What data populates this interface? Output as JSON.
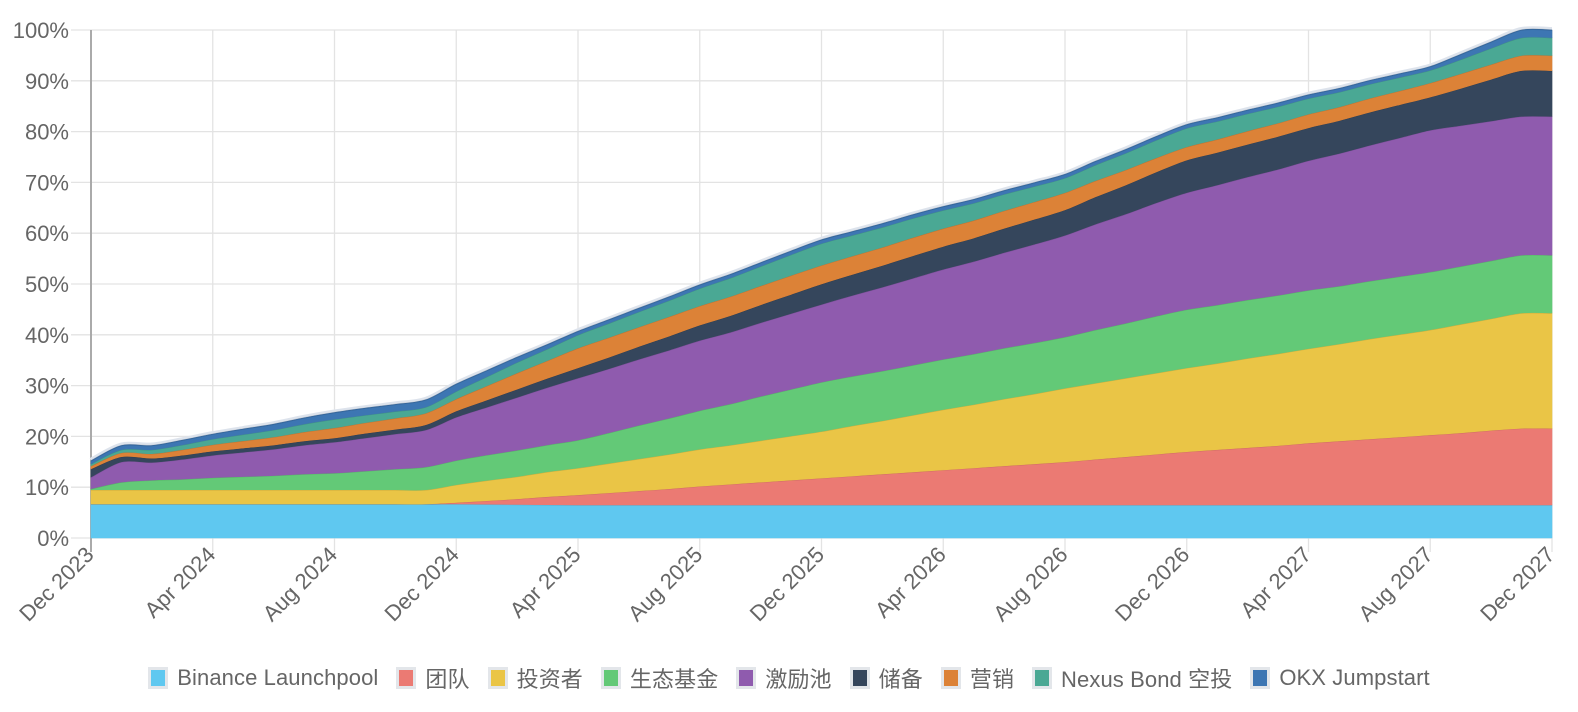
{
  "chart_data": {
    "type": "area",
    "stacked": true,
    "title": "",
    "xlabel": "",
    "ylabel": "",
    "ylim": [
      0,
      100
    ],
    "y_unit": "%",
    "y_ticks": [
      "0%",
      "10%",
      "20%",
      "30%",
      "40%",
      "50%",
      "60%",
      "70%",
      "80%",
      "90%",
      "100%"
    ],
    "x_tick_labels": [
      "Dec 2023",
      "Apr 2024",
      "Aug 2024",
      "Dec 2024",
      "Apr 2025",
      "Aug 2025",
      "Dec 2025",
      "Apr 2026",
      "Aug 2026",
      "Dec 2026",
      "Apr 2027",
      "Aug 2027",
      "Dec 2027"
    ],
    "x_start": "Dec 2023",
    "x_end": "Dec 2027",
    "x_interval": "month",
    "grid": true,
    "legend_position": "bottom",
    "series": [
      {
        "name": "Binance Launchpool",
        "color": "#5fc8f0",
        "values": [
          6.7,
          6.7,
          6.7,
          6.7,
          6.7,
          6.7,
          6.7,
          6.7,
          6.7,
          6.7,
          6.7,
          6.7,
          6.7,
          6.65,
          6.6,
          6.55,
          6.5,
          6.5,
          6.5,
          6.5,
          6.5,
          6.5,
          6.5,
          6.5,
          6.5,
          6.5,
          6.5,
          6.5,
          6.5,
          6.5,
          6.5,
          6.5,
          6.5,
          6.5,
          6.5,
          6.5,
          6.5,
          6.5,
          6.5,
          6.5,
          6.5,
          6.5,
          6.5,
          6.5,
          6.5,
          6.5,
          6.5,
          6.5,
          6.5
        ]
      },
      {
        "name": "团队",
        "color": "#eb7a73",
        "values": [
          0,
          0,
          0,
          0,
          0,
          0,
          0,
          0,
          0,
          0,
          0,
          0,
          0.3,
          0.7,
          1.1,
          1.6,
          2.0,
          2.4,
          2.8,
          3.2,
          3.7,
          4.1,
          4.5,
          4.9,
          5.3,
          5.7,
          6.1,
          6.5,
          6.9,
          7.3,
          7.7,
          8.1,
          8.5,
          9.0,
          9.5,
          10.0,
          10.5,
          10.9,
          11.3,
          11.7,
          12.2,
          12.6,
          13.0,
          13.4,
          13.8,
          14.2,
          14.7,
          15.1,
          15.1
        ]
      },
      {
        "name": "投资者",
        "color": "#eac546",
        "values": [
          2.8,
          2.8,
          2.8,
          2.8,
          2.8,
          2.8,
          2.8,
          2.8,
          2.8,
          2.8,
          2.8,
          2.8,
          3.5,
          4.0,
          4.4,
          4.9,
          5.3,
          5.8,
          6.3,
          6.8,
          7.3,
          7.7,
          8.2,
          8.7,
          9.2,
          9.9,
          10.5,
          11.2,
          11.9,
          12.5,
          13.2,
          13.8,
          14.5,
          15.0,
          15.5,
          16.0,
          16.5,
          17.0,
          17.6,
          18.1,
          18.6,
          19.1,
          19.7,
          20.2,
          20.7,
          21.4,
          22.0,
          22.7,
          22.7
        ]
      },
      {
        "name": "生态基金",
        "color": "#63c977",
        "values": [
          0.2,
          1.5,
          1.9,
          2.1,
          2.4,
          2.6,
          2.8,
          3.1,
          3.3,
          3.7,
          4.1,
          4.5,
          4.8,
          5.0,
          5.2,
          5.3,
          5.5,
          6.0,
          6.6,
          7.1,
          7.6,
          8.1,
          8.7,
          9.2,
          9.7,
          9.75,
          9.8,
          9.85,
          9.9,
          9.95,
          10.0,
          10.05,
          10.1,
          10.5,
          10.8,
          11.2,
          11.5,
          11.5,
          11.5,
          11.5,
          11.5,
          11.4,
          11.4,
          11.4,
          11.4,
          11.4,
          11.4,
          11.4,
          11.4
        ]
      },
      {
        "name": "激励池",
        "color": "#8f5bae",
        "values": [
          2.3,
          4.0,
          3.5,
          3.9,
          4.4,
          4.8,
          5.2,
          5.7,
          6.1,
          6.5,
          6.9,
          7.3,
          8.5,
          9.4,
          10.4,
          11.3,
          12.2,
          12.6,
          13.0,
          13.4,
          13.8,
          14.1,
          14.5,
          14.9,
          15.3,
          15.9,
          16.5,
          17.1,
          17.7,
          18.2,
          18.8,
          19.4,
          20.0,
          20.8,
          21.5,
          22.3,
          23.0,
          23.6,
          24.2,
          24.8,
          25.5,
          26.1,
          26.7,
          27.3,
          27.9,
          27.7,
          27.5,
          27.3,
          27.3
        ]
      },
      {
        "name": "储备",
        "color": "#35465c",
        "values": [
          1.6,
          1.0,
          0.8,
          0.8,
          0.8,
          0.8,
          0.8,
          0.8,
          0.8,
          0.9,
          0.9,
          1.0,
          1.2,
          1.4,
          1.6,
          1.8,
          2.0,
          2.25,
          2.5,
          2.75,
          3.0,
          3.25,
          3.5,
          3.75,
          4.0,
          4.1,
          4.25,
          4.4,
          4.5,
          4.6,
          4.75,
          4.9,
          5.0,
          5.35,
          5.7,
          6.05,
          6.4,
          6.4,
          6.4,
          6.45,
          6.45,
          6.45,
          6.5,
          6.5,
          6.5,
          7.3,
          8.2,
          9.0,
          9.0
        ]
      },
      {
        "name": "营销",
        "color": "#dc8237",
        "values": [
          0.6,
          0.8,
          0.9,
          1.1,
          1.3,
          1.45,
          1.6,
          1.8,
          2.0,
          2.1,
          2.2,
          2.3,
          2.4,
          2.8,
          3.2,
          3.5,
          3.9,
          3.9,
          3.85,
          3.85,
          3.8,
          3.8,
          3.75,
          3.75,
          3.7,
          3.65,
          3.6,
          3.6,
          3.55,
          3.5,
          3.5,
          3.45,
          3.4,
          3.2,
          3.0,
          2.8,
          2.6,
          2.6,
          2.65,
          2.65,
          2.7,
          2.7,
          2.75,
          2.75,
          2.8,
          2.9,
          2.95,
          3.0,
          3.0
        ]
      },
      {
        "name": "Nexus Bond 空投",
        "color": "#4aa894",
        "values": [
          0.4,
          0.6,
          0.8,
          0.95,
          1.1,
          1.25,
          1.4,
          1.55,
          1.7,
          1.5,
          1.35,
          1.2,
          1.5,
          1.8,
          2.1,
          2.3,
          2.6,
          2.8,
          3.0,
          3.2,
          3.45,
          3.65,
          3.85,
          4.1,
          4.3,
          4.1,
          3.95,
          3.8,
          3.6,
          3.4,
          3.25,
          3.05,
          2.9,
          3.1,
          3.3,
          3.5,
          3.7,
          3.55,
          3.4,
          3.25,
          3.1,
          2.95,
          2.8,
          2.65,
          2.5,
          2.8,
          3.2,
          3.5,
          3.5
        ]
      },
      {
        "name": "OKX Jumpstart",
        "color": "#3d76b3",
        "values": [
          0.6,
          0.8,
          0.8,
          0.9,
          0.95,
          1.05,
          1.1,
          1.2,
          1.3,
          1.35,
          1.35,
          1.4,
          1.4,
          1.2,
          1.0,
          0.85,
          0.7,
          0.7,
          0.7,
          0.7,
          0.7,
          0.7,
          0.7,
          0.7,
          0.7,
          0.7,
          0.7,
          0.7,
          0.7,
          0.7,
          0.7,
          0.7,
          0.7,
          0.7,
          0.7,
          0.7,
          0.7,
          0.7,
          0.7,
          0.7,
          0.7,
          0.7,
          0.7,
          0.7,
          0.7,
          1.0,
          1.2,
          1.5,
          1.5
        ]
      }
    ]
  }
}
